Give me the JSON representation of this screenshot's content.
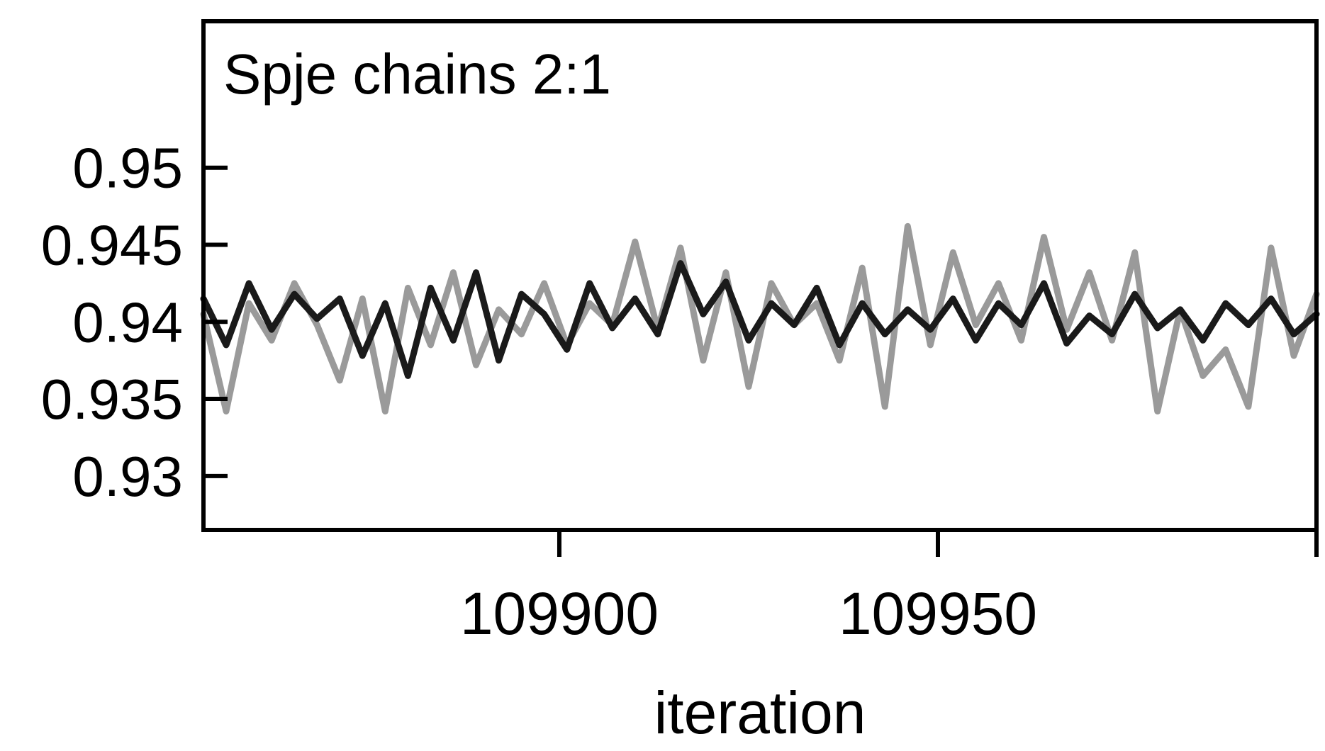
{
  "chart_data": {
    "type": "line",
    "title": "",
    "annotation": "Spje chains 2:1",
    "xlabel": "iteration",
    "ylabel": "",
    "xlim": [
      109853,
      110000
    ],
    "ylim": [
      0.9265,
      0.9595
    ],
    "x_ticks": [
      109900,
      109950,
      110000
    ],
    "x_tick_labels": [
      "109900",
      "109950",
      ""
    ],
    "y_ticks": [
      0.93,
      0.935,
      0.94,
      0.945,
      0.95
    ],
    "y_tick_labels": [
      "0.93",
      "0.935",
      "0.94",
      "0.945",
      "0.95"
    ],
    "grid": false,
    "legend": "none",
    "x": [
      109853,
      109856,
      109859,
      109862,
      109865,
      109868,
      109871,
      109874,
      109877,
      109880,
      109883,
      109886,
      109889,
      109892,
      109895,
      109898,
      109901,
      109904,
      109907,
      109910,
      109913,
      109916,
      109919,
      109922,
      109925,
      109928,
      109931,
      109934,
      109937,
      109940,
      109943,
      109946,
      109949,
      109952,
      109955,
      109958,
      109961,
      109964,
      109967,
      109970,
      109973,
      109976,
      109979,
      109982,
      109985,
      109988,
      109991,
      109994,
      109997,
      110000
    ],
    "series": [
      {
        "color": "#1a1a1a",
        "values": [
          0.9415,
          0.9385,
          0.9425,
          0.9395,
          0.9418,
          0.9402,
          0.9415,
          0.9378,
          0.9412,
          0.9365,
          0.9422,
          0.9388,
          0.9432,
          0.9375,
          0.9418,
          0.9405,
          0.9382,
          0.9425,
          0.9396,
          0.9415,
          0.9392,
          0.9438,
          0.9405,
          0.9426,
          0.9388,
          0.9412,
          0.9398,
          0.9422,
          0.9385,
          0.9412,
          0.9392,
          0.9408,
          0.9395,
          0.9415,
          0.9388,
          0.9412,
          0.9398,
          0.9425,
          0.9386,
          0.9404,
          0.9392,
          0.9418,
          0.9396,
          0.9408,
          0.9388,
          0.9412,
          0.9398,
          0.9415,
          0.9392,
          0.9405
        ]
      },
      {
        "color": "#9a9a9a",
        "values": [
          0.9405,
          0.9342,
          0.9412,
          0.9388,
          0.9425,
          0.9398,
          0.9362,
          0.9415,
          0.9342,
          0.9422,
          0.9385,
          0.9432,
          0.9372,
          0.9408,
          0.9392,
          0.9425,
          0.9385,
          0.9412,
          0.9398,
          0.9452,
          0.9395,
          0.9448,
          0.9375,
          0.9432,
          0.9358,
          0.9425,
          0.9398,
          0.9412,
          0.9375,
          0.9435,
          0.9345,
          0.9462,
          0.9385,
          0.9445,
          0.9398,
          0.9425,
          0.9388,
          0.9455,
          0.9395,
          0.9432,
          0.9388,
          0.9445,
          0.9342,
          0.9408,
          0.9365,
          0.9382,
          0.9345,
          0.9448,
          0.9378,
          0.9418
        ]
      }
    ]
  }
}
